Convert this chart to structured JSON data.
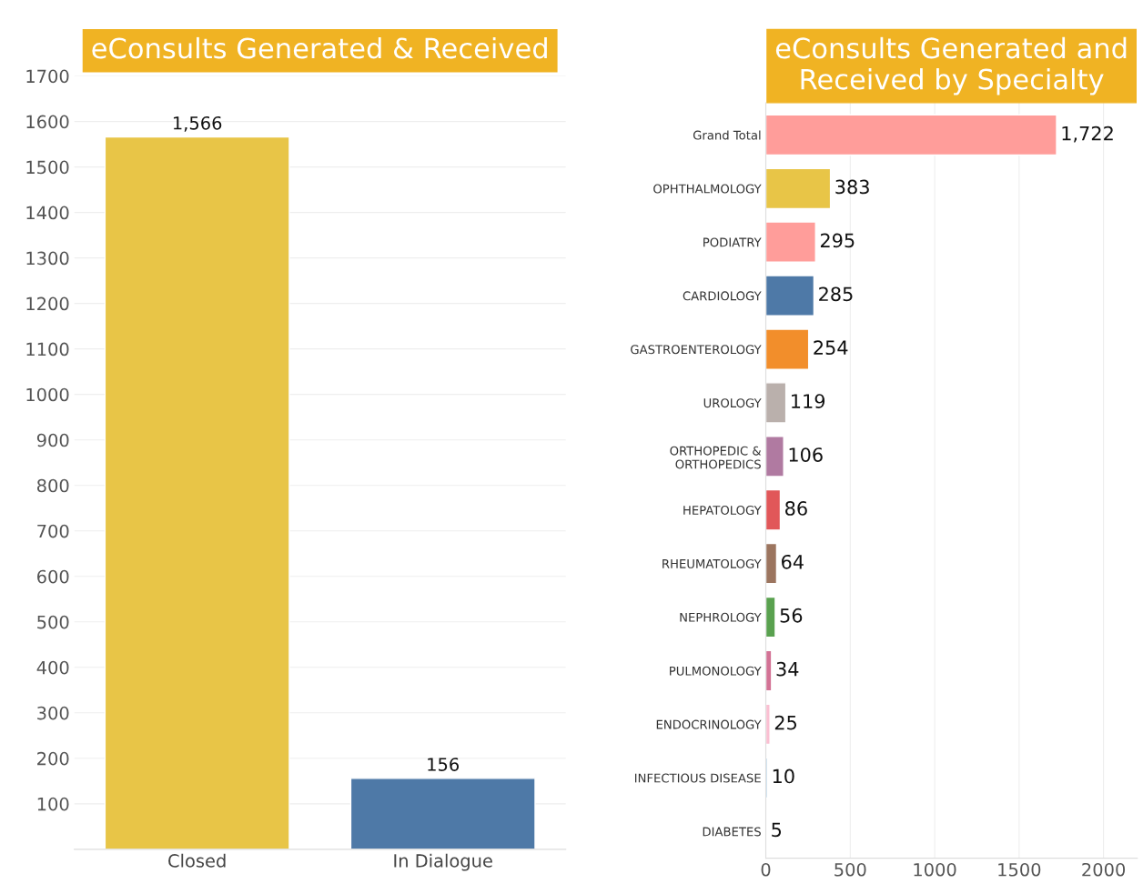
{
  "chart_data": [
    {
      "type": "bar",
      "title": "eConsults Generated & Received",
      "categories": [
        "Closed",
        "In Dialogue"
      ],
      "values": [
        1566,
        156
      ],
      "colors": [
        "#e8c547",
        "#4e79a7"
      ],
      "ylim": [
        0,
        1700
      ],
      "yticks": [
        100,
        200,
        300,
        400,
        500,
        600,
        700,
        800,
        900,
        1000,
        1100,
        1200,
        1300,
        1400,
        1500,
        1600,
        1700
      ],
      "grid": "y",
      "value_labels": [
        "1,566",
        "156"
      ]
    },
    {
      "type": "bar",
      "orientation": "horizontal",
      "title": "eConsults Generated and Received by Specialty",
      "categories": [
        "Grand Total",
        "OPHTHALMOLOGY",
        "PODIATRY",
        "CARDIOLOGY",
        "GASTROENTEROLOGY",
        "UROLOGY",
        "ORTHOPEDIC &\nORTHOPEDICS",
        "HEPATOLOGY",
        "RHEUMATOLOGY",
        "NEPHROLOGY",
        "PULMONOLOGY",
        "ENDOCRINOLOGY",
        "INFECTIOUS DISEASE",
        "DIABETES"
      ],
      "values": [
        1722,
        383,
        295,
        285,
        254,
        119,
        106,
        86,
        64,
        56,
        34,
        25,
        10,
        5
      ],
      "colors": [
        "#ff9d9a",
        "#e8c547",
        "#ff9d9a",
        "#4e79a7",
        "#f28e2b",
        "#bab0ac",
        "#b07aa1",
        "#e15759",
        "#9c755f",
        "#59a14f",
        "#d37295",
        "#fabfd2",
        "#a0cbe8",
        "#79706e"
      ],
      "xlim": [
        0,
        2200
      ],
      "xticks": [
        0,
        500,
        1000,
        1500,
        2000
      ],
      "grid": "x",
      "value_labels": [
        "1,722",
        "383",
        "295",
        "285",
        "254",
        "119",
        "106",
        "86",
        "64",
        "56",
        "34",
        "25",
        "10",
        "5"
      ]
    }
  ]
}
